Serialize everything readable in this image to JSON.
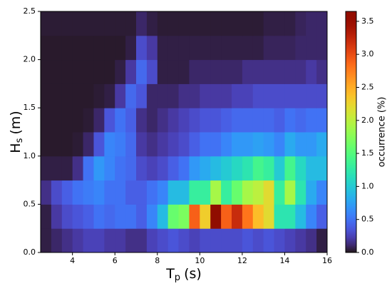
{
  "chart_data": {
    "type": "heatmap",
    "xlabel": {
      "base": "T",
      "sub": "p",
      "unit": "(s)"
    },
    "ylabel": {
      "base": "H",
      "sub": "s",
      "unit": "(m)"
    },
    "colorbar_label": "occurrence (%)",
    "colormap": "turbo",
    "xbins": [
      2.5,
      3,
      3.5,
      4,
      4.5,
      5,
      5.5,
      6,
      6.5,
      7,
      7.5,
      8,
      8.5,
      9,
      9.5,
      10,
      10.5,
      11,
      11.5,
      12,
      12.5,
      13,
      13.5,
      14,
      14.5,
      15,
      15.5,
      16
    ],
    "ybins": [
      0,
      0.25,
      0.5,
      0.75,
      1,
      1.25,
      1.5,
      1.75,
      2,
      2.25,
      2.5
    ],
    "values": [
      [
        0.05,
        0.1,
        0.15,
        0.2,
        0.25,
        0.25,
        0.2,
        0.2,
        0.15,
        0.15,
        0.25,
        0.3,
        0.35,
        0.3,
        0.25,
        0.3,
        0.3,
        0.3,
        0.3,
        0.35,
        0.3,
        0.35,
        0.3,
        0.25,
        0.2,
        0.15,
        0.05
      ],
      [
        0.05,
        0.2,
        0.3,
        0.35,
        0.4,
        0.5,
        0.45,
        0.5,
        0.5,
        0.4,
        0.6,
        0.9,
        1.6,
        1.7,
        2.9,
        2.3,
        3.65,
        2.9,
        3.2,
        2.8,
        2.4,
        2.2,
        1.2,
        1.2,
        0.9,
        0.6,
        0.4
      ],
      [
        0.15,
        0.3,
        0.4,
        0.5,
        0.55,
        0.6,
        0.5,
        0.5,
        0.4,
        0.4,
        0.5,
        0.6,
        0.9,
        0.9,
        1.3,
        1.3,
        1.9,
        1.3,
        1.6,
        1.9,
        2.0,
        2.2,
        1.3,
        1.9,
        1.2,
        0.8,
        0.6
      ],
      [
        0.05,
        0.05,
        0.05,
        0.15,
        0.5,
        0.7,
        0.6,
        0.5,
        0.45,
        0.3,
        0.25,
        0.3,
        0.4,
        0.5,
        0.7,
        0.8,
        0.9,
        1.0,
        1.1,
        1.2,
        1.4,
        1.3,
        1.0,
        1.4,
        1.1,
        0.9,
        0.9
      ],
      [
        0.02,
        0.02,
        0.02,
        0.03,
        0.1,
        0.35,
        0.6,
        0.55,
        0.45,
        0.2,
        0.15,
        0.2,
        0.25,
        0.3,
        0.4,
        0.5,
        0.5,
        0.6,
        0.7,
        0.7,
        0.75,
        0.7,
        0.6,
        0.8,
        0.7,
        0.7,
        0.8
      ],
      [
        0.02,
        0.02,
        0.02,
        0.02,
        0.03,
        0.1,
        0.35,
        0.5,
        0.4,
        0.15,
        0.1,
        0.15,
        0.2,
        0.25,
        0.3,
        0.35,
        0.35,
        0.4,
        0.45,
        0.45,
        0.45,
        0.45,
        0.4,
        0.5,
        0.45,
        0.5,
        0.5
      ],
      [
        0.02,
        0.02,
        0.02,
        0.02,
        0.02,
        0.03,
        0.05,
        0.2,
        0.45,
        0.35,
        0.1,
        0.1,
        0.1,
        0.15,
        0.15,
        0.2,
        0.2,
        0.2,
        0.25,
        0.25,
        0.3,
        0.3,
        0.3,
        0.3,
        0.3,
        0.3,
        0.3
      ],
      [
        0.02,
        0.02,
        0.02,
        0.02,
        0.02,
        0.02,
        0.02,
        0.05,
        0.2,
        0.45,
        0.3,
        0.05,
        0.05,
        0.05,
        0.1,
        0.1,
        0.1,
        0.1,
        0.1,
        0.15,
        0.15,
        0.15,
        0.15,
        0.15,
        0.15,
        0.2,
        0.15
      ],
      [
        0.02,
        0.02,
        0.02,
        0.02,
        0.02,
        0.02,
        0.02,
        0.02,
        0.05,
        0.3,
        0.2,
        0.05,
        0.05,
        0.05,
        0.05,
        0.05,
        0.05,
        0.05,
        0.05,
        0.05,
        0.05,
        0.08,
        0.08,
        0.08,
        0.1,
        0.1,
        0.1
      ],
      [
        0.03,
        0.03,
        0.03,
        0.03,
        0.03,
        0.03,
        0.03,
        0.03,
        0.03,
        0.1,
        0.05,
        0.03,
        0.03,
        0.03,
        0.03,
        0.03,
        0.03,
        0.03,
        0.03,
        0.03,
        0.03,
        0.05,
        0.05,
        0.05,
        0.08,
        0.1,
        0.1
      ]
    ],
    "xlim": [
      2.5,
      16
    ],
    "ylim": [
      0,
      2.5
    ],
    "xticks": [
      4,
      6,
      8,
      10,
      12,
      14,
      16
    ],
    "yticks": [
      {
        "value": 0,
        "label": "0.0"
      },
      {
        "value": 0.5,
        "label": "0.5"
      },
      {
        "value": 1,
        "label": "1.0"
      },
      {
        "value": 1.5,
        "label": "1.5"
      },
      {
        "value": 2,
        "label": "2.0"
      },
      {
        "value": 2.5,
        "label": "2.5"
      }
    ],
    "clim": [
      0,
      3.65
    ],
    "cticks": [
      {
        "value": 0,
        "label": "0.0"
      },
      {
        "value": 0.5,
        "label": "0.5"
      },
      {
        "value": 1,
        "label": "1.0"
      },
      {
        "value": 1.5,
        "label": "1.5"
      },
      {
        "value": 2,
        "label": "2.0"
      },
      {
        "value": 2.5,
        "label": "2.5"
      },
      {
        "value": 3,
        "label": "3.0"
      },
      {
        "value": 3.5,
        "label": "3.5"
      }
    ]
  }
}
